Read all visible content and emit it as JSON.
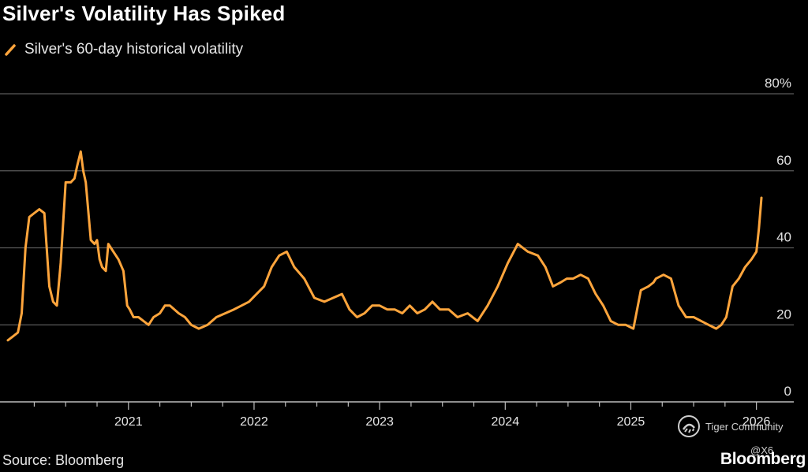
{
  "header": {
    "title": "Silver's Volatility Has Spiked"
  },
  "footer": {
    "source": "Source: Bloomberg",
    "brand": "Bloomberg"
  },
  "watermark": {
    "name": "Tiger Community",
    "handle": "@X6"
  },
  "colors": {
    "line": "#FFA53C",
    "grid": "#5a5a5a",
    "background": "#000000"
  },
  "chart_data": {
    "type": "line",
    "title": "Silver's Volatility Has Spiked",
    "xlabel": "",
    "ylabel": "",
    "legend_position": "top-left",
    "grid": true,
    "xlim": [
      2020.04,
      2026.08
    ],
    "ylim": [
      0,
      80
    ],
    "y_ticks": [
      0,
      20,
      40,
      60,
      80
    ],
    "y_tick_labels": [
      "0",
      "20",
      "40",
      "60",
      "80%"
    ],
    "x_ticks": [
      2021,
      2022,
      2023,
      2024,
      2025,
      2026
    ],
    "x_tick_labels": [
      "2021",
      "2022",
      "2023",
      "2024",
      "2025",
      "2026"
    ],
    "series": [
      {
        "name": "Silver's 60-day historical volatility",
        "x": [
          2020.04,
          2020.08,
          2020.12,
          2020.15,
          2020.18,
          2020.21,
          2020.25,
          2020.29,
          2020.33,
          2020.37,
          2020.4,
          2020.43,
          2020.46,
          2020.5,
          2020.54,
          2020.57,
          2020.59,
          2020.62,
          2020.64,
          2020.66,
          2020.7,
          2020.73,
          2020.75,
          2020.77,
          2020.79,
          2020.82,
          2020.84,
          2020.86,
          2020.88,
          2020.92,
          2020.96,
          2020.99,
          2021.01,
          2021.04,
          2021.08,
          2021.12,
          2021.16,
          2021.2,
          2021.25,
          2021.29,
          2021.33,
          2021.4,
          2021.45,
          2021.5,
          2021.56,
          2021.63,
          2021.7,
          2021.77,
          2021.84,
          2021.9,
          2021.96,
          2022.02,
          2022.08,
          2022.14,
          2022.2,
          2022.26,
          2022.32,
          2022.4,
          2022.48,
          2022.56,
          2022.63,
          2022.7,
          2022.76,
          2022.82,
          2022.88,
          2022.94,
          2023.0,
          2023.06,
          2023.12,
          2023.18,
          2023.24,
          2023.3,
          2023.36,
          2023.42,
          2023.48,
          2023.55,
          2023.62,
          2023.7,
          2023.78,
          2023.86,
          2023.94,
          2024.02,
          2024.1,
          2024.18,
          2024.26,
          2024.32,
          2024.38,
          2024.44,
          2024.49,
          2024.54,
          2024.6,
          2024.66,
          2024.72,
          2024.78,
          2024.84,
          2024.9,
          2024.96,
          2025.02,
          2025.08,
          2025.14,
          2025.18,
          2025.2,
          2025.26,
          2025.32,
          2025.38,
          2025.42,
          2025.44,
          2025.5,
          2025.56,
          2025.62,
          2025.68,
          2025.72,
          2025.76,
          2025.81,
          2025.86,
          2025.91,
          2025.96,
          2026.0,
          2026.02,
          2026.04
        ],
        "values": [
          16,
          17,
          18,
          23,
          40,
          48,
          49,
          50,
          49,
          30,
          26,
          25,
          36,
          57,
          57,
          58,
          61,
          65,
          60,
          57,
          42,
          41,
          42,
          37,
          35,
          34,
          41,
          40,
          39,
          37,
          34,
          25,
          24,
          22,
          22,
          21,
          20,
          22,
          23,
          25,
          25,
          23,
          22,
          20,
          19,
          20,
          22,
          23,
          24,
          25,
          26,
          28,
          30,
          35,
          38,
          39,
          35,
          32,
          27,
          26,
          27,
          28,
          24,
          22,
          23,
          25,
          25,
          24,
          24,
          23,
          25,
          23,
          24,
          26,
          24,
          24,
          22,
          23,
          21,
          25,
          30,
          36,
          41,
          39,
          38,
          35,
          30,
          31,
          32,
          32,
          33,
          32,
          28,
          25,
          21,
          20,
          20,
          19,
          29,
          30,
          31,
          32,
          33,
          32,
          25,
          23,
          22,
          22,
          21,
          20,
          19,
          20,
          22,
          30,
          32,
          35,
          37,
          39,
          45,
          53
        ]
      }
    ]
  }
}
